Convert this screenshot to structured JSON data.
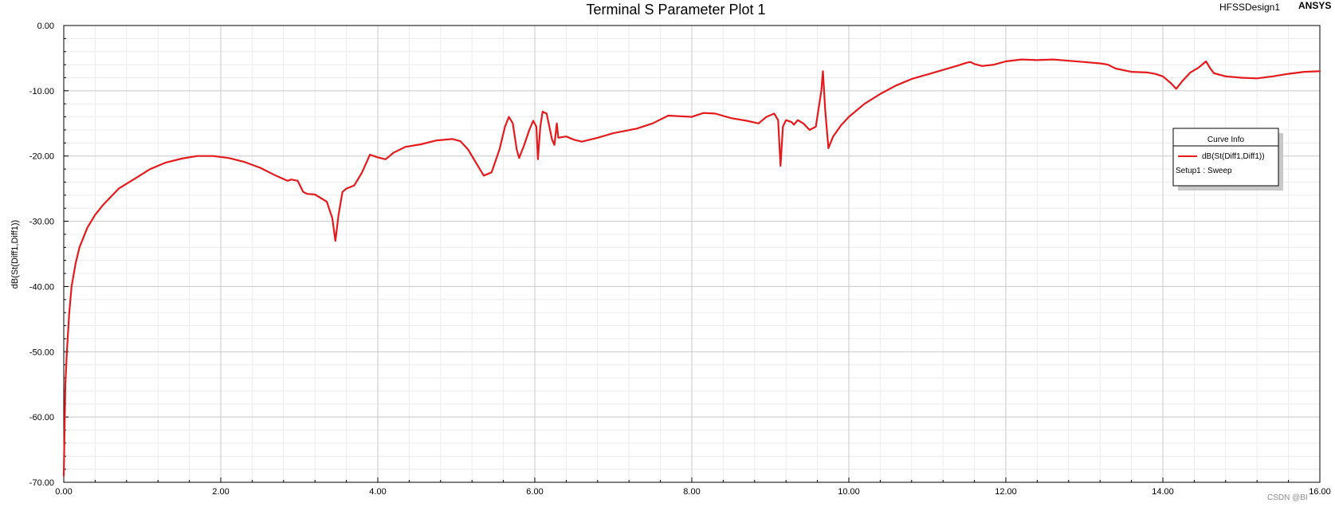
{
  "header": {
    "title": "Terminal S Parameter Plot 1",
    "design": "HFSSDesign1",
    "brand": "ANSYS"
  },
  "legend": {
    "title": "Curve Info",
    "series_label": "dB(St(Diff1,Diff1))",
    "setup_label": "Setup1 : Sweep",
    "placement": "right"
  },
  "watermark": "CSDN @BI",
  "colors": {
    "curve": "#e41a1c",
    "grid_major": "#c8c8c8",
    "grid_minor": "#ececec",
    "axis": "#000000"
  },
  "chart_data": {
    "type": "line",
    "title": "Terminal S Parameter Plot 1",
    "xlabel": "",
    "ylabel": "dB(St(Diff1,Diff1))",
    "xlim": [
      0,
      16
    ],
    "ylim": [
      -70,
      0
    ],
    "grid": true,
    "x_ticks": [
      "0.00",
      "2.00",
      "4.00",
      "6.00",
      "8.00",
      "10.00",
      "12.00",
      "14.00",
      "16.00"
    ],
    "y_ticks": [
      "0.00",
      "-10.00",
      "-20.00",
      "-30.00",
      "-40.00",
      "-50.00",
      "-60.00",
      "-70.00"
    ],
    "series": [
      {
        "name": "dB(St(Diff1,Diff1))",
        "color": "#e41a1c",
        "points": [
          [
            0.0,
            -69
          ],
          [
            0.01,
            -62
          ],
          [
            0.02,
            -55
          ],
          [
            0.04,
            -50
          ],
          [
            0.07,
            -44
          ],
          [
            0.1,
            -40
          ],
          [
            0.15,
            -36.5
          ],
          [
            0.2,
            -34
          ],
          [
            0.3,
            -31
          ],
          [
            0.4,
            -29
          ],
          [
            0.5,
            -27.5
          ],
          [
            0.7,
            -25
          ],
          [
            0.9,
            -23.5
          ],
          [
            1.1,
            -22
          ],
          [
            1.3,
            -21
          ],
          [
            1.5,
            -20.4
          ],
          [
            1.7,
            -20
          ],
          [
            1.9,
            -20
          ],
          [
            2.1,
            -20.3
          ],
          [
            2.3,
            -20.9
          ],
          [
            2.5,
            -21.8
          ],
          [
            2.7,
            -23
          ],
          [
            2.85,
            -23.8
          ],
          [
            2.9,
            -23.6
          ],
          [
            2.98,
            -23.8
          ],
          [
            3.05,
            -25.5
          ],
          [
            3.1,
            -25.8
          ],
          [
            3.2,
            -25.9
          ],
          [
            3.35,
            -27
          ],
          [
            3.42,
            -29.5
          ],
          [
            3.46,
            -33
          ],
          [
            3.5,
            -29
          ],
          [
            3.55,
            -25.5
          ],
          [
            3.6,
            -25
          ],
          [
            3.7,
            -24.5
          ],
          [
            3.8,
            -22.5
          ],
          [
            3.9,
            -19.8
          ],
          [
            4.0,
            -20.2
          ],
          [
            4.1,
            -20.5
          ],
          [
            4.2,
            -19.5
          ],
          [
            4.35,
            -18.6
          ],
          [
            4.55,
            -18.2
          ],
          [
            4.75,
            -17.6
          ],
          [
            4.95,
            -17.4
          ],
          [
            5.05,
            -17.7
          ],
          [
            5.15,
            -19
          ],
          [
            5.25,
            -21
          ],
          [
            5.35,
            -23
          ],
          [
            5.45,
            -22.5
          ],
          [
            5.55,
            -19
          ],
          [
            5.62,
            -15.5
          ],
          [
            5.67,
            -14
          ],
          [
            5.72,
            -15
          ],
          [
            5.77,
            -19
          ],
          [
            5.8,
            -20.3
          ],
          [
            5.86,
            -18.5
          ],
          [
            5.93,
            -16
          ],
          [
            5.98,
            -14.6
          ],
          [
            6.02,
            -15.5
          ],
          [
            6.04,
            -20.5
          ],
          [
            6.07,
            -15.5
          ],
          [
            6.1,
            -13.2
          ],
          [
            6.15,
            -13.5
          ],
          [
            6.22,
            -17.5
          ],
          [
            6.25,
            -18.3
          ],
          [
            6.28,
            -15
          ],
          [
            6.3,
            -17.2
          ],
          [
            6.4,
            -17
          ],
          [
            6.5,
            -17.5
          ],
          [
            6.6,
            -17.8
          ],
          [
            6.8,
            -17.2
          ],
          [
            7.0,
            -16.5
          ],
          [
            7.3,
            -15.8
          ],
          [
            7.5,
            -15
          ],
          [
            7.7,
            -13.8
          ],
          [
            7.85,
            -13.9
          ],
          [
            8.0,
            -14
          ],
          [
            8.15,
            -13.4
          ],
          [
            8.3,
            -13.5
          ],
          [
            8.5,
            -14.2
          ],
          [
            8.7,
            -14.6
          ],
          [
            8.85,
            -15
          ],
          [
            8.95,
            -14
          ],
          [
            9.05,
            -13.5
          ],
          [
            9.1,
            -14.5
          ],
          [
            9.13,
            -21.5
          ],
          [
            9.16,
            -15.5
          ],
          [
            9.2,
            -14.5
          ],
          [
            9.27,
            -14.8
          ],
          [
            9.3,
            -15.2
          ],
          [
            9.35,
            -14.5
          ],
          [
            9.42,
            -15
          ],
          [
            9.5,
            -16
          ],
          [
            9.58,
            -15.5
          ],
          [
            9.65,
            -10
          ],
          [
            9.67,
            -7
          ],
          [
            9.7,
            -13
          ],
          [
            9.74,
            -18.8
          ],
          [
            9.8,
            -17
          ],
          [
            9.9,
            -15.3
          ],
          [
            10.0,
            -14
          ],
          [
            10.2,
            -12
          ],
          [
            10.4,
            -10.5
          ],
          [
            10.6,
            -9.2
          ],
          [
            10.8,
            -8.2
          ],
          [
            11.0,
            -7.5
          ],
          [
            11.2,
            -6.8
          ],
          [
            11.4,
            -6.1
          ],
          [
            11.5,
            -5.7
          ],
          [
            11.55,
            -5.6
          ],
          [
            11.6,
            -5.9
          ],
          [
            11.7,
            -6.2
          ],
          [
            11.85,
            -6
          ],
          [
            12.0,
            -5.5
          ],
          [
            12.2,
            -5.2
          ],
          [
            12.4,
            -5.3
          ],
          [
            12.6,
            -5.2
          ],
          [
            12.8,
            -5.4
          ],
          [
            13.0,
            -5.6
          ],
          [
            13.2,
            -5.8
          ],
          [
            13.3,
            -6
          ],
          [
            13.4,
            -6.6
          ],
          [
            13.6,
            -7.1
          ],
          [
            13.8,
            -7.2
          ],
          [
            13.9,
            -7.4
          ],
          [
            14.0,
            -7.8
          ],
          [
            14.1,
            -8.8
          ],
          [
            14.17,
            -9.7
          ],
          [
            14.25,
            -8.5
          ],
          [
            14.35,
            -7.2
          ],
          [
            14.45,
            -6.5
          ],
          [
            14.5,
            -6
          ],
          [
            14.55,
            -5.5
          ],
          [
            14.6,
            -6.5
          ],
          [
            14.65,
            -7.3
          ],
          [
            14.8,
            -7.8
          ],
          [
            15.0,
            -8
          ],
          [
            15.2,
            -8.1
          ],
          [
            15.4,
            -7.8
          ],
          [
            15.6,
            -7.4
          ],
          [
            15.8,
            -7.1
          ],
          [
            16.0,
            -7
          ]
        ]
      }
    ]
  }
}
